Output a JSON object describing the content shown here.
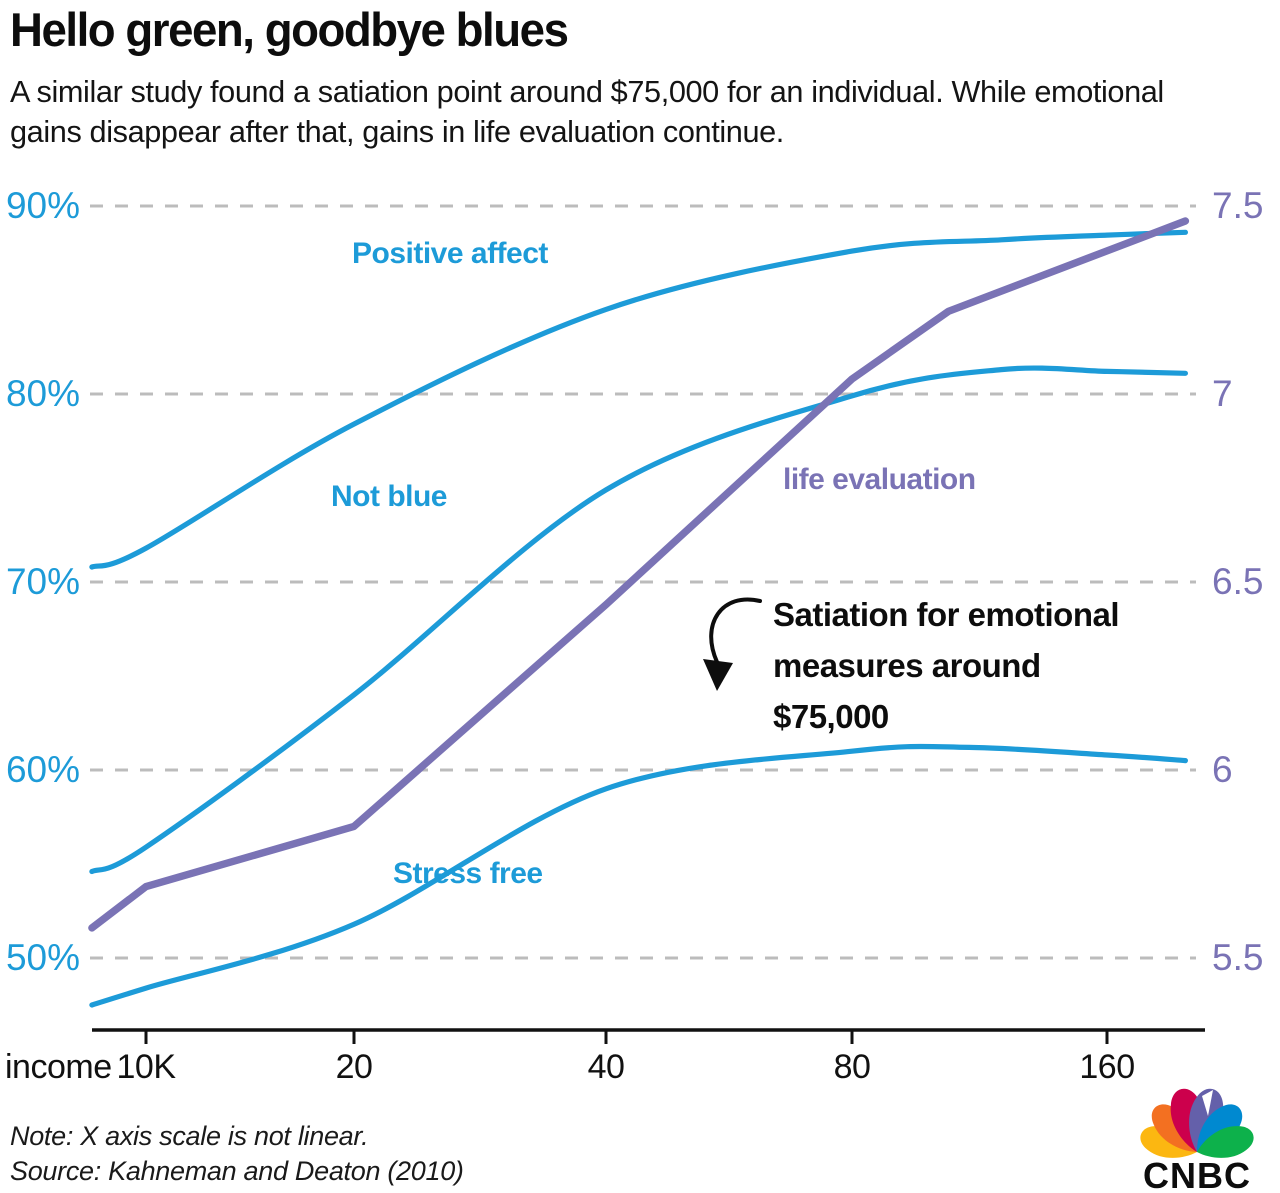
{
  "header": {
    "title": "Hello green, goodbye blues",
    "subtitle": "A similar study found a satiation point around $75,000 for an individual. While emotional gains disappear after that, gains in life evaluation continue."
  },
  "chart_data": {
    "type": "line",
    "title": "Hello green, goodbye blues",
    "x_axis": {
      "label": "income",
      "tick_labels": [
        "10K",
        "20",
        "40",
        "80",
        "160"
      ],
      "tick_values": [
        10,
        20,
        40,
        80,
        160
      ],
      "unit": "thousand USD per year",
      "scale": "non-linear (log-like)"
    },
    "y_axis_left": {
      "tick_labels": [
        "90%",
        "80%",
        "70%",
        "60%",
        "50%"
      ],
      "tick_values": [
        90,
        80,
        70,
        60,
        50
      ],
      "range": [
        50,
        90
      ],
      "unit": "%",
      "color": "#1d9bd8"
    },
    "y_axis_right": {
      "tick_labels": [
        "7.5",
        "7",
        "6.5",
        "6",
        "5.5"
      ],
      "tick_values": [
        7.5,
        7,
        6.5,
        6,
        5.5
      ],
      "range": [
        5.5,
        7.5
      ],
      "color": "#7a73b5"
    },
    "grid": {
      "style": "dashed-horizontal",
      "color": "#bcbcbc"
    },
    "series": [
      {
        "name": "Positive affect",
        "axis": "left",
        "color": "#1d9bd8",
        "smooth": true,
        "x": [
          8.35,
          10,
          20,
          40,
          80,
          120,
          160,
          198
        ],
        "values": [
          70.8,
          71.8,
          78.4,
          84.5,
          87.6,
          88.2,
          88.45,
          88.6
        ]
      },
      {
        "name": "Not blue",
        "axis": "left",
        "color": "#1d9bd8",
        "smooth": true,
        "x": [
          8.35,
          10,
          20,
          40,
          80,
          120,
          160,
          198
        ],
        "values": [
          54.6,
          55.9,
          64.0,
          74.9,
          79.9,
          81.3,
          81.2,
          81.1
        ]
      },
      {
        "name": "Stress free",
        "axis": "left",
        "color": "#1d9bd8",
        "smooth": true,
        "x": [
          8.35,
          10,
          20,
          40,
          80,
          110,
          160,
          198
        ],
        "values": [
          47.5,
          48.4,
          51.8,
          59.0,
          61.0,
          61.2,
          60.8,
          60.5
        ]
      },
      {
        "name": "life evaluation",
        "axis": "right",
        "color": "#7a73b5",
        "smooth": false,
        "x": [
          8.35,
          10,
          20,
          40,
          80,
          104,
          198
        ],
        "values": [
          5.58,
          5.69,
          5.85,
          6.44,
          7.04,
          7.22,
          7.46
        ]
      }
    ],
    "annotation": {
      "lines": [
        "Satiation for emotional",
        "measures around",
        "$75,000"
      ]
    }
  },
  "footer": {
    "note": "Note: X axis scale is not linear.",
    "source": "Source: Kahneman and Deaton (2010)",
    "logo_text": "CNBC"
  }
}
